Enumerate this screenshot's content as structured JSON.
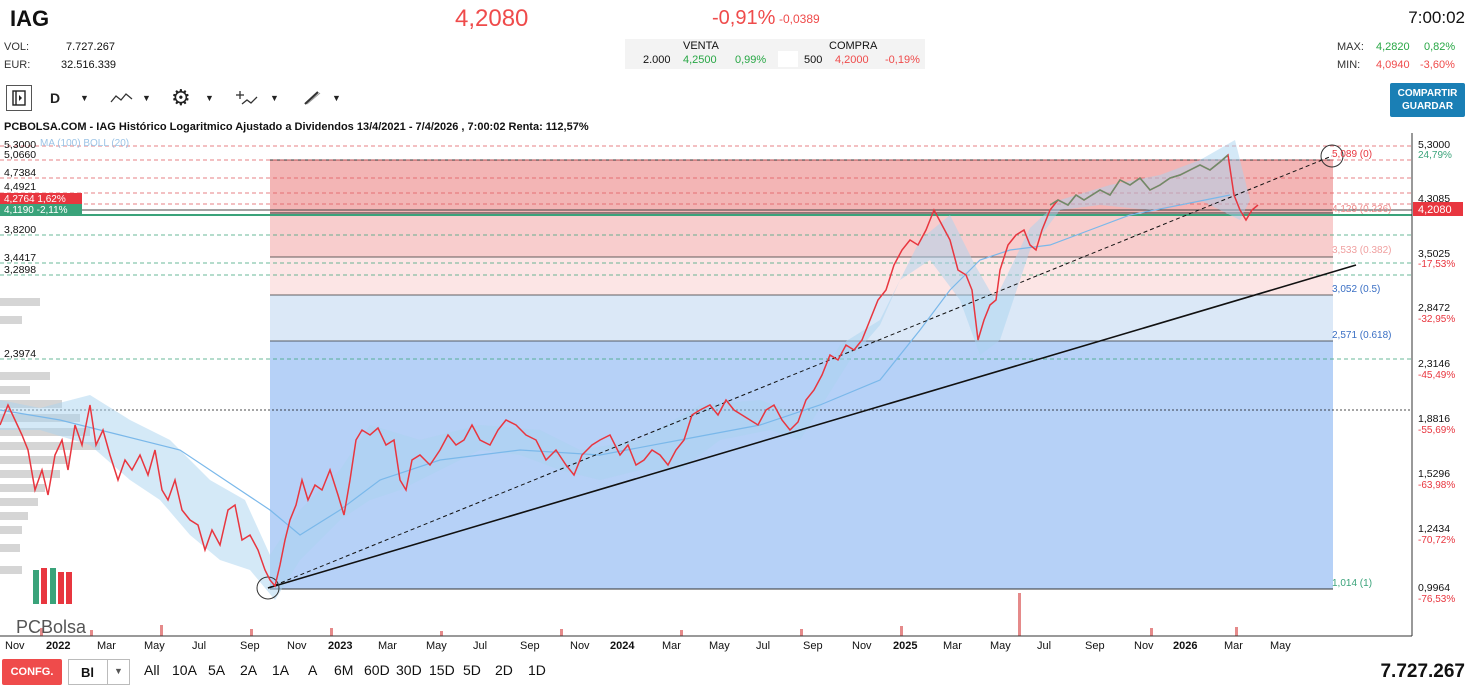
{
  "header": {
    "ticker": "IAG",
    "price": "4,2080",
    "change_pct": "-0,91%",
    "change_abs": "-0,0389",
    "time": "7:00:02",
    "vol_label": "VOL:",
    "vol_value": "7.727.267",
    "eur_label": "EUR:",
    "eur_value": "32.516.339",
    "max_label": "MAX:",
    "max_value": "4,2820",
    "max_pct": "0,82%",
    "min_label": "MIN:",
    "min_value": "4,0940",
    "min_pct": "-3,60%"
  },
  "orderbook": {
    "sell_label": "VENTA",
    "buy_label": "COMPRA",
    "sell_qty": "2.000",
    "sell_price": "4,2500",
    "sell_pct": "0,99%",
    "buy_qty": "500",
    "buy_price": "4,2000",
    "buy_pct": "-0,19%"
  },
  "toolbar": {
    "interval": "D",
    "share_line1": "COMPARTIR",
    "share_line2": "GUARDAR"
  },
  "chart": {
    "title": "PCBOLSA.COM - IAG Histórico Logaritmico Ajustado a Dividendos 13/4/2021 - 7/4/2026 , 7:00:02 Renta: 112,57%",
    "indicator_label": "MA (100) BOLL (20)",
    "logo_text": "PCBolsa",
    "left_levels": [
      "5,3000",
      "5,0660",
      "4,7384",
      "4,4921",
      "3,8200",
      "3,4417",
      "3,2898",
      "2,3974"
    ],
    "left_badge_red": "4,2764  1,62%",
    "left_badge_green": "4,1190  -2,11%",
    "right_prices": [
      "5,3000",
      "4,3085",
      "3,5025",
      "2,8472",
      "2,3146",
      "1,8816",
      "1,5296",
      "1,2434",
      "0,9964"
    ],
    "right_pcts": [
      "24,79%",
      "-17,53%",
      "-32,95%",
      "-45,49%",
      "-55,69%",
      "-63,98%",
      "-70,72%",
      "-76,53%"
    ],
    "current_price_badge": "4,2080",
    "fib_labels": [
      "5,089 (0)",
      "4,129 (0.236)",
      "3,533 (0.382)",
      "3,052 (0.5)",
      "2,571 (0.618)",
      "1,014 (1)"
    ],
    "x_labels": [
      "Nov",
      "2022",
      "Mar",
      "May",
      "Jul",
      "Sep",
      "Nov",
      "2023",
      "Mar",
      "May",
      "Jul",
      "Sep",
      "Nov",
      "2024",
      "Mar",
      "May",
      "Jul",
      "Sep",
      "Nov",
      "2025",
      "Mar",
      "May",
      "Jul",
      "Sep",
      "Nov",
      "2026",
      "Mar",
      "May"
    ]
  },
  "chart_data": {
    "type": "line",
    "title": "IAG Histórico Logaritmico Ajustado a Dividendos 13/4/2021 - 7/4/2026",
    "scale": "log",
    "ylim": [
      0.95,
      5.35
    ],
    "x_range": [
      "2021-10",
      "2026-05"
    ],
    "series": [
      {
        "name": "IAG",
        "points": [
          [
            "2021-10-15",
            1.85
          ],
          [
            "2021-12-01",
            1.62
          ],
          [
            "2022-01-20",
            1.88
          ],
          [
            "2022-03-10",
            1.55
          ],
          [
            "2022-05-01",
            1.48
          ],
          [
            "2022-07-01",
            1.22
          ],
          [
            "2022-08-15",
            1.32
          ],
          [
            "2022-09-25",
            1.0
          ],
          [
            "2022-11-01",
            1.22
          ],
          [
            "2022-12-15",
            1.35
          ],
          [
            "2023-01-15",
            1.72
          ],
          [
            "2023-02-20",
            1.78
          ],
          [
            "2023-04-01",
            1.62
          ],
          [
            "2023-05-20",
            1.68
          ],
          [
            "2023-07-10",
            1.8
          ],
          [
            "2023-08-20",
            1.76
          ],
          [
            "2023-10-10",
            1.62
          ],
          [
            "2023-11-25",
            1.68
          ],
          [
            "2024-01-15",
            1.72
          ],
          [
            "2024-03-10",
            1.62
          ],
          [
            "2024-05-01",
            1.88
          ],
          [
            "2024-06-15",
            1.82
          ],
          [
            "2024-08-01",
            1.75
          ],
          [
            "2024-09-10",
            2.2
          ],
          [
            "2024-10-15",
            2.42
          ],
          [
            "2024-12-01",
            3.35
          ],
          [
            "2025-01-15",
            3.7
          ],
          [
            "2025-02-20",
            4.05
          ],
          [
            "2025-03-20",
            3.4
          ],
          [
            "2025-04-08",
            2.6
          ],
          [
            "2025-05-05",
            3.2
          ],
          [
            "2025-06-15",
            3.75
          ],
          [
            "2025-07-25",
            4.15
          ],
          [
            "2025-09-15",
            4.4
          ],
          [
            "2025-11-15",
            4.45
          ],
          [
            "2026-01-10",
            4.6
          ],
          [
            "2026-02-20",
            5.1
          ],
          [
            "2026-03-10",
            4.2
          ],
          [
            "2026-04-07",
            4.208
          ]
        ]
      }
    ],
    "fibonacci": [
      {
        "level": 0,
        "price": 5.089
      },
      {
        "level": 0.236,
        "price": 4.129
      },
      {
        "level": 0.382,
        "price": 3.533
      },
      {
        "level": 0.5,
        "price": 3.052
      },
      {
        "level": 0.618,
        "price": 2.571
      },
      {
        "level": 1,
        "price": 1.014
      }
    ],
    "colors": {
      "line": "#e8363f",
      "fib_top": "#f08c8c",
      "fib_bottom": "#6fa8f5",
      "band": "#a9d3ef"
    }
  },
  "footer": {
    "config_label": "CONFG.",
    "chart_type": "Bl",
    "periods": [
      "All",
      "10A",
      "5A",
      "2A",
      "1A",
      "A",
      "6M",
      "60D",
      "30D",
      "15D",
      "5D",
      "2D",
      "1D"
    ],
    "volume_total": "7.727.267"
  }
}
